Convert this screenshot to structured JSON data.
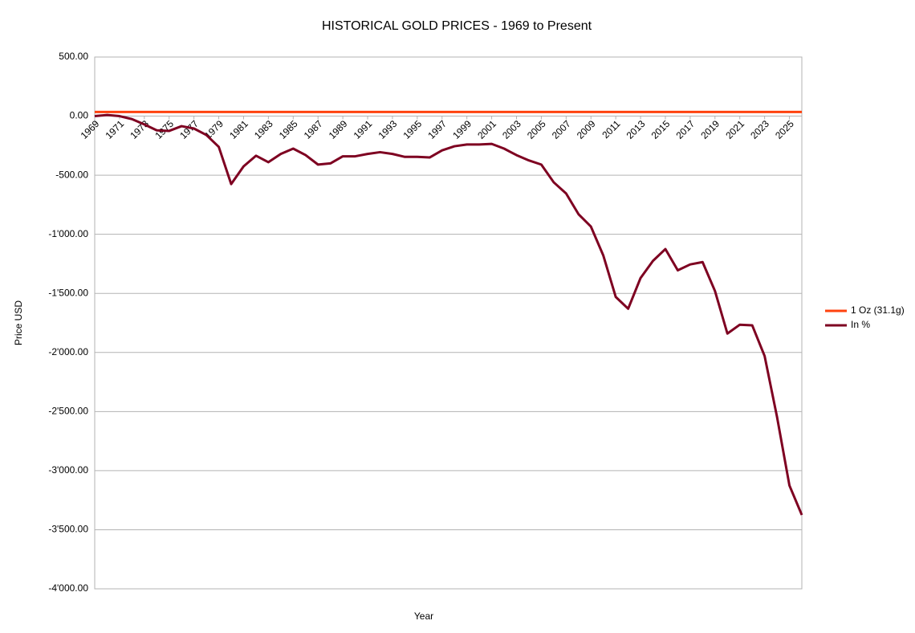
{
  "chart_data": {
    "type": "line",
    "title": "HISTORICAL GOLD PRICES - 1969 to Present",
    "x_label": "Year",
    "y_label": "Price USD",
    "x": [
      1969,
      1970,
      1971,
      1972,
      1973,
      1974,
      1975,
      1976,
      1977,
      1978,
      1979,
      1980,
      1981,
      1982,
      1983,
      1984,
      1985,
      1986,
      1987,
      1988,
      1989,
      1990,
      1991,
      1992,
      1993,
      1994,
      1995,
      1996,
      1997,
      1998,
      1999,
      2000,
      2001,
      2002,
      2003,
      2004,
      2005,
      2006,
      2007,
      2008,
      2009,
      2010,
      2011,
      2012,
      2013,
      2014,
      2015,
      2016,
      2017,
      2018,
      2019,
      2020,
      2021,
      2022,
      2023,
      2024,
      2025,
      2026
    ],
    "xlim": [
      1969,
      2026
    ],
    "xticks": [
      1969,
      1971,
      1973,
      1975,
      1977,
      1979,
      1981,
      1983,
      1985,
      1987,
      1989,
      1991,
      1993,
      1995,
      1997,
      1999,
      2001,
      2003,
      2005,
      2007,
      2009,
      2011,
      2013,
      2015,
      2017,
      2019,
      2021,
      2023,
      2025
    ],
    "ylim": [
      -4000,
      500
    ],
    "yticks": [
      {
        "value": 500,
        "label": "500.00"
      },
      {
        "value": 0,
        "label": "0.00"
      },
      {
        "value": -500,
        "label": "-500.00"
      },
      {
        "value": -1000,
        "label": "-1'000.00"
      },
      {
        "value": -1500,
        "label": "-1'500.00"
      },
      {
        "value": -2000,
        "label": "-2'000.00"
      },
      {
        "value": -2500,
        "label": "-2'500.00"
      },
      {
        "value": -3000,
        "label": "-3'000.00"
      },
      {
        "value": -3500,
        "label": "-3'500.00"
      },
      {
        "value": -4000,
        "label": "-4'000.00"
      }
    ],
    "grid": true,
    "legend": "right",
    "series": [
      {
        "name": "1 Oz (31.1g)",
        "color": "#ff420e",
        "values": [
          35,
          35,
          35,
          35,
          35,
          35,
          35,
          35,
          35,
          35,
          35,
          35,
          35,
          35,
          35,
          35,
          35,
          35,
          35,
          35,
          35,
          35,
          35,
          35,
          35,
          35,
          35,
          35,
          35,
          35,
          35,
          35,
          35,
          35,
          35,
          35,
          35,
          35,
          35,
          35,
          35,
          35,
          35,
          35,
          35,
          35,
          35,
          35,
          35,
          35,
          35,
          35,
          35,
          35,
          35,
          35,
          35,
          35
        ]
      },
      {
        "name": "In %",
        "color": "#7e0021",
        "values": [
          0,
          10,
          0,
          -25,
          -70,
          -120,
          -125,
          -85,
          -105,
          -160,
          -260,
          -575,
          -425,
          -335,
          -390,
          -320,
          -275,
          -330,
          -410,
          -400,
          -340,
          -340,
          -320,
          -305,
          -320,
          -345,
          -345,
          -350,
          -290,
          -255,
          -240,
          -240,
          -235,
          -275,
          -330,
          -375,
          -410,
          -560,
          -655,
          -830,
          -935,
          -1180,
          -1530,
          -1630,
          -1370,
          -1225,
          -1125,
          -1305,
          -1255,
          -1235,
          -1480,
          -1840,
          -1765,
          -1770,
          -2030,
          -2545,
          -3125,
          -3375
        ]
      }
    ]
  }
}
